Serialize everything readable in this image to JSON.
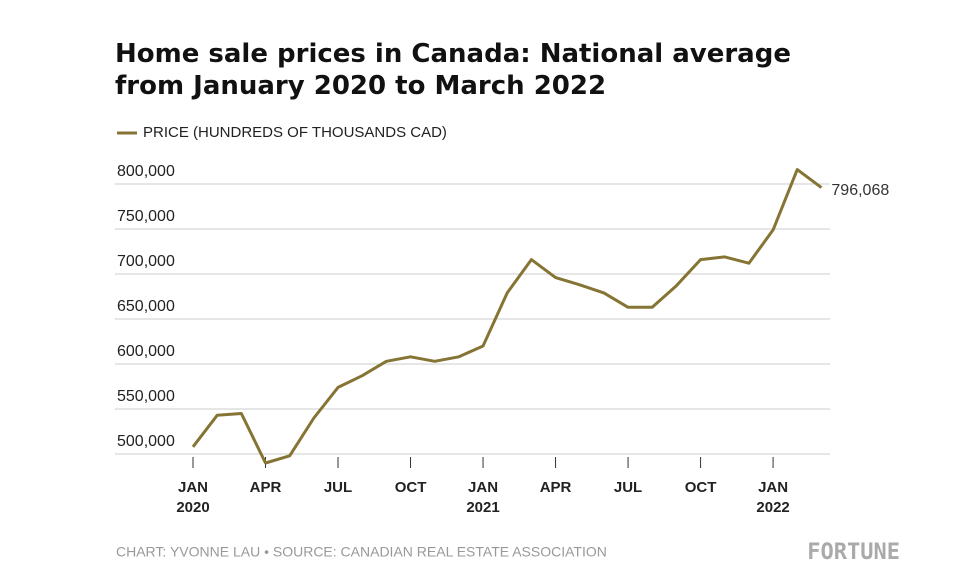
{
  "chart_data": {
    "type": "line",
    "title": "Home sale prices in Canada: National average from January 2020 to March 2022",
    "categories": [
      "JAN",
      null,
      null,
      "APR",
      null,
      null,
      "JUL",
      null,
      null,
      "OCT",
      null,
      null,
      "JAN",
      null,
      null,
      "APR",
      null,
      null,
      "JUL",
      null,
      null,
      "OCT",
      null,
      null,
      "JAN",
      null,
      null
    ],
    "year_labels": [
      "2020",
      null,
      null,
      null,
      null,
      null,
      null,
      null,
      null,
      null,
      null,
      null,
      "2021",
      null,
      null,
      null,
      null,
      null,
      null,
      null,
      null,
      null,
      null,
      null,
      "2022",
      null,
      null
    ],
    "series": [
      {
        "name": "PRICE (HUNDREDS OF THOUSANDS CAD)",
        "color": "#857434",
        "values": [
          508000,
          543000,
          545000,
          490000,
          498000,
          540000,
          574000,
          587000,
          603000,
          608000,
          603000,
          608000,
          620000,
          679000,
          716000,
          696000,
          688000,
          679000,
          663000,
          663000,
          687000,
          716000,
          719000,
          712000,
          749000,
          816000,
          796068
        ],
        "value_labels": [
          null,
          null,
          null,
          null,
          null,
          null,
          null,
          null,
          null,
          null,
          null,
          null,
          null,
          null,
          null,
          null,
          null,
          null,
          null,
          null,
          null,
          null,
          null,
          null,
          null,
          null,
          "796,068"
        ]
      }
    ],
    "ylim": [
      480000,
      820000
    ],
    "yticks": [
      {
        "value": 500000,
        "label": "500,000"
      },
      {
        "value": 550000,
        "label": "550,000"
      },
      {
        "value": 600000,
        "label": "600,000"
      },
      {
        "value": 650000,
        "label": "650,000"
      },
      {
        "value": 700000,
        "label": "700,000"
      },
      {
        "value": 750000,
        "label": "750,000"
      },
      {
        "value": 800000,
        "label": "800,000"
      }
    ],
    "grid": true,
    "credit": "CHART: YVONNE LAU • SOURCE: CANADIAN REAL ESTATE ASSOCIATION",
    "brand": "FORTUNE"
  }
}
